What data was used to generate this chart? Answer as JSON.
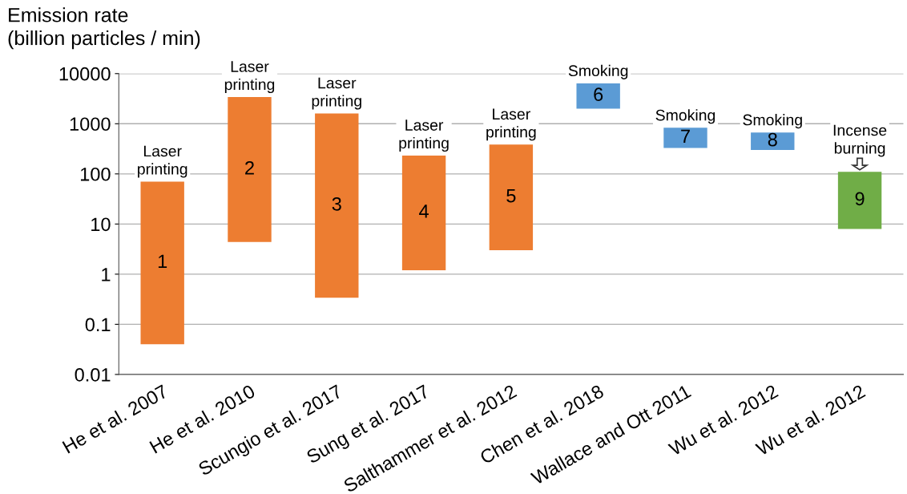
{
  "chart_data": {
    "type": "bar",
    "ylabel": "Emission rate\n(billion particles / min)",
    "categories": [
      "He et al. 2007",
      "He et al. 2010",
      "Scungio et al. 2017",
      "Sung et al. 2017",
      "Salthammer et al. 2012",
      "Chen et al. 2018",
      "Wallace and Ott 2011",
      "Wu et al. 2012",
      "Wu et al. 2012"
    ],
    "base": [
      0.04,
      4.4,
      0.34,
      1.2,
      3,
      2000,
      330,
      300,
      8
    ],
    "values": [
      70,
      3400,
      1600,
      230,
      380,
      4400,
      500,
      370,
      102
    ],
    "colors": [
      "#ed7d31",
      "#ed7d31",
      "#ed7d31",
      "#ed7d31",
      "#ed7d31",
      "#5b9bd5",
      "#5b9bd5",
      "#5b9bd5",
      "#70ad47"
    ],
    "annotations": [
      "1",
      "2",
      "3",
      "4",
      "5",
      "6",
      "7",
      "8",
      "9",
      "Laser\nprinting",
      "Laser\nprinting",
      "Laser\nprinting",
      "Laser\nprinting",
      "Laser\nprinting",
      "Smoking",
      "Smoking",
      "Smoking",
      "Incense\nburning"
    ],
    "log": "y",
    "ylim": [
      0.01,
      10000
    ],
    "yticks": [
      0.01,
      0.1,
      1,
      10,
      100,
      1000,
      10000
    ],
    "grid": "y"
  }
}
